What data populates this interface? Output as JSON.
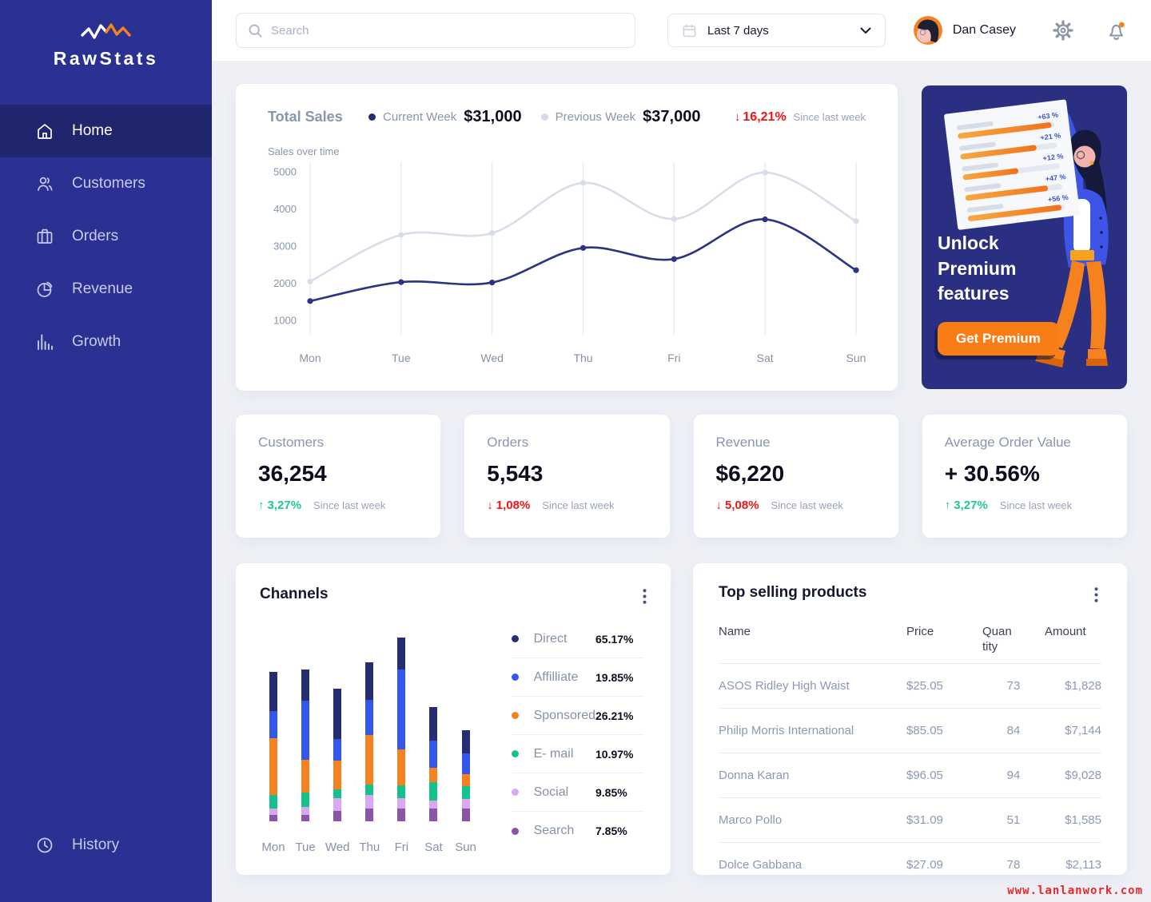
{
  "brand": {
    "name": "RawStats"
  },
  "sidebar": {
    "items": [
      {
        "id": "home",
        "label": "Home",
        "active": true
      },
      {
        "id": "customers",
        "label": "Customers",
        "active": false
      },
      {
        "id": "orders",
        "label": "Orders",
        "active": false
      },
      {
        "id": "revenue",
        "label": "Revenue",
        "active": false
      },
      {
        "id": "growth",
        "label": "Growth",
        "active": false
      }
    ],
    "bottom_item": {
      "id": "history",
      "label": "History",
      "active": false
    }
  },
  "topbar": {
    "search_placeholder": "Search",
    "date_range": "Last 7 days",
    "user_name": "Dan Casey"
  },
  "total_sales": {
    "title": "Total Sales",
    "legend": [
      {
        "label": "Current Week",
        "value": "$31,000",
        "color": "#232C74"
      },
      {
        "label": "Previous Week",
        "value": "$37,000",
        "color": "#D5DCE6"
      }
    ],
    "delta": {
      "direction": "down",
      "value": "16,21%",
      "note": "Since last week"
    },
    "axis_caption": "Sales over time"
  },
  "chart_data": [
    {
      "type": "line",
      "title": "Sales over time",
      "x": [
        "Mon",
        "Tue",
        "Wed",
        "Thu",
        "Fri",
        "Sat",
        "Sun"
      ],
      "series": [
        {
          "name": "Current Week",
          "color": "#2A3384",
          "values": [
            1520,
            2030,
            2020,
            2950,
            2650,
            3720,
            2350
          ]
        },
        {
          "name": "Previous Week",
          "color": "#D8DEE9",
          "values": [
            2050,
            3300,
            3350,
            4700,
            3730,
            4980,
            3670
          ]
        }
      ],
      "yticks": [
        5000,
        4000,
        3000,
        2000,
        1000
      ],
      "ylim": [
        700,
        5300
      ],
      "grid": "vertical",
      "legend_position": "top"
    },
    {
      "type": "bar",
      "subtype": "stacked",
      "title": "Channels",
      "categories": [
        "Mon",
        "Tue",
        "Wed",
        "Thu",
        "Fri",
        "Sat",
        "Sun"
      ],
      "series": [
        {
          "name": "Search",
          "color": "#8C54A8",
          "values": [
            8,
            8,
            13,
            15,
            15,
            15,
            15
          ]
        },
        {
          "name": "Social",
          "color": "#D9A8F2",
          "values": [
            7,
            9,
            15,
            17,
            13,
            10,
            12
          ]
        },
        {
          "name": "E- mail",
          "color": "#12C48B",
          "values": [
            17,
            18,
            11,
            12,
            15,
            22,
            15
          ]
        },
        {
          "name": "Sponsored",
          "color": "#F5821F",
          "values": [
            68,
            39,
            34,
            60,
            44,
            17,
            15
          ]
        },
        {
          "name": "Affilliate",
          "color": "#3356EC",
          "values": [
            33,
            71,
            26,
            42,
            96,
            33,
            25
          ]
        },
        {
          "name": "Direct",
          "color": "#252D73",
          "values": [
            47,
            38,
            61,
            45,
            38,
            41,
            28
          ]
        }
      ],
      "value_units": "relative-height"
    }
  ],
  "stats": [
    {
      "title": "Customers",
      "value": "36,254",
      "direction": "up",
      "delta": "3,27%",
      "note": "Since last week"
    },
    {
      "title": "Orders",
      "value": "5,543",
      "direction": "down",
      "delta": "1,08%",
      "note": "Since last week"
    },
    {
      "title": "Revenue",
      "value": "$6,220",
      "direction": "down",
      "delta": "5,08%",
      "note": "Since last week"
    },
    {
      "title": "Average Order Value",
      "value": "+ 30.56%",
      "direction": "up",
      "delta": "3,27%",
      "note": "Since last week"
    }
  ],
  "channels": {
    "title": "Channels",
    "legend": [
      {
        "label": "Direct",
        "value": "65.17%",
        "color": "#252D73"
      },
      {
        "label": "Affilliate",
        "value": "19.85%",
        "color": "#3356EC"
      },
      {
        "label": "Sponsored",
        "value": "26.21%",
        "color": "#F5821F"
      },
      {
        "label": "E- mail",
        "value": "10.97%",
        "color": "#12C48B"
      },
      {
        "label": "Social",
        "value": "9.85%",
        "color": "#D9A8F2"
      },
      {
        "label": "Search",
        "value": "7.85%",
        "color": "#8C54A8"
      }
    ]
  },
  "products": {
    "title": "Top selling products",
    "columns": [
      "Name",
      "Price",
      "Quantity",
      "Amount"
    ],
    "rows": [
      {
        "name": "ASOS Ridley High Waist",
        "price": "$25.05",
        "quantity": "73",
        "amount": "$1,828"
      },
      {
        "name": "Philip Morris International",
        "price": "$85.05",
        "quantity": "84",
        "amount": "$7,144"
      },
      {
        "name": "Donna Karan",
        "price": "$96.05",
        "quantity": "94",
        "amount": "$9,028"
      },
      {
        "name": "Marco Pollo",
        "price": "$31.09",
        "quantity": "51",
        "amount": "$1,585"
      },
      {
        "name": "Dolce  Gabbana",
        "price": "$27.09",
        "quantity": "78",
        "amount": "$2,113"
      }
    ]
  },
  "premium": {
    "heading": "Unlock\nPremium\nfeatures",
    "button": "Get Premium",
    "badges": [
      "+63 %",
      "+21 %",
      "+12 %",
      "+47 %",
      "+56 %"
    ]
  },
  "colors": {
    "sidebar": "#2B3192",
    "sidebar_active": "#20266E",
    "accent_orange": "#F5821F",
    "positive": "#1FC795",
    "negative": "#F01414",
    "current_week": "#2A3384",
    "previous_week": "#D8DEE9",
    "page_bg": "#EEF0F6"
  },
  "watermark": "www.lanlanwork.com"
}
